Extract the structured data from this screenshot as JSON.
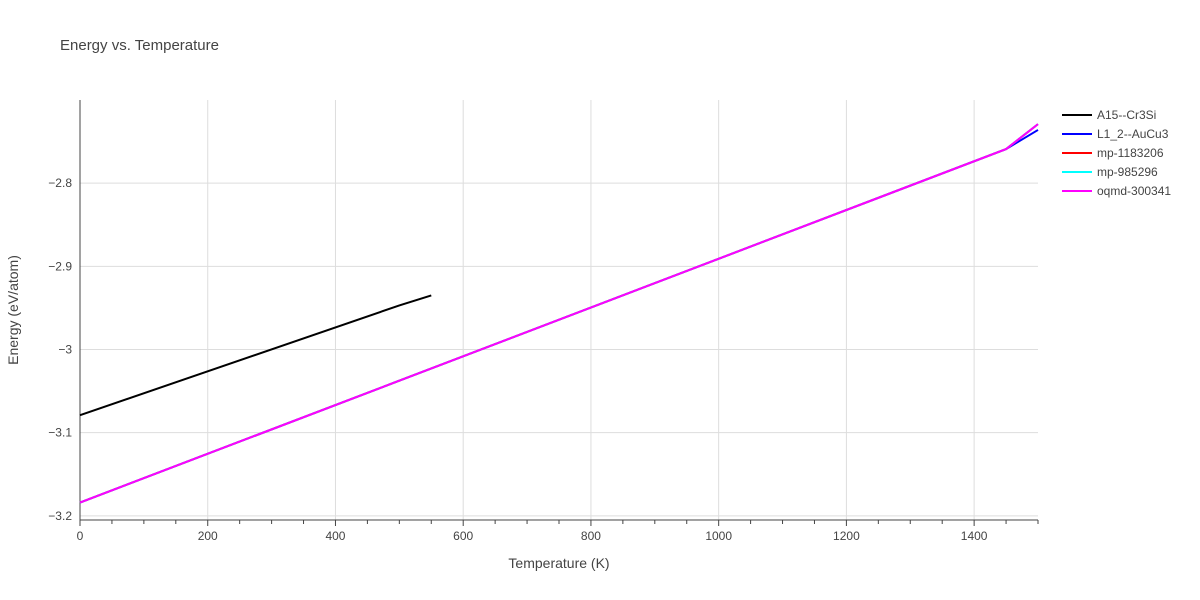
{
  "chart_data": {
    "type": "line",
    "title": "Energy vs. Temperature",
    "xlabel": "Temperature (K)",
    "ylabel": "Energy (eV/atom)",
    "xlim": [
      0,
      1500
    ],
    "ylim": [
      -3.205,
      -2.7
    ],
    "x_ticks": [
      0,
      200,
      400,
      600,
      800,
      1000,
      1200,
      1400
    ],
    "y_ticks": [
      -3.2,
      -3.1,
      -3.0,
      -2.9,
      -2.8
    ],
    "x_tick_labels": [
      "0",
      "200",
      "400",
      "600",
      "800",
      "1000",
      "1200",
      "1400"
    ],
    "y_tick_labels": [
      "−3.2",
      "−3.1",
      "−3",
      "−2.9",
      "−2.8"
    ],
    "grid": true,
    "legend_position": "top-right outside",
    "series": [
      {
        "name": "A15--Cr3Si",
        "color": "#000000",
        "points": [
          [
            0,
            -3.079
          ],
          [
            500,
            -2.947
          ],
          [
            550,
            -2.935
          ]
        ]
      },
      {
        "name": "L1_2--AuCu3",
        "color": "#0000ff",
        "points": [
          [
            0,
            -3.184
          ],
          [
            1450,
            -2.759
          ],
          [
            1500,
            -2.736
          ]
        ]
      },
      {
        "name": "mp-1183206",
        "color": "#ff0000",
        "points": [
          [
            0,
            -3.184
          ],
          [
            1450,
            -2.759
          ],
          [
            1500,
            -2.729
          ]
        ]
      },
      {
        "name": "mp-985296",
        "color": "#00ffff",
        "points": [
          [
            0,
            -3.184
          ],
          [
            1450,
            -2.759
          ],
          [
            1500,
            -2.729
          ]
        ]
      },
      {
        "name": "oqmd-300341",
        "color": "#ff00ff",
        "points": [
          [
            0,
            -3.184
          ],
          [
            1450,
            -2.759
          ],
          [
            1500,
            -2.729
          ]
        ]
      }
    ]
  }
}
